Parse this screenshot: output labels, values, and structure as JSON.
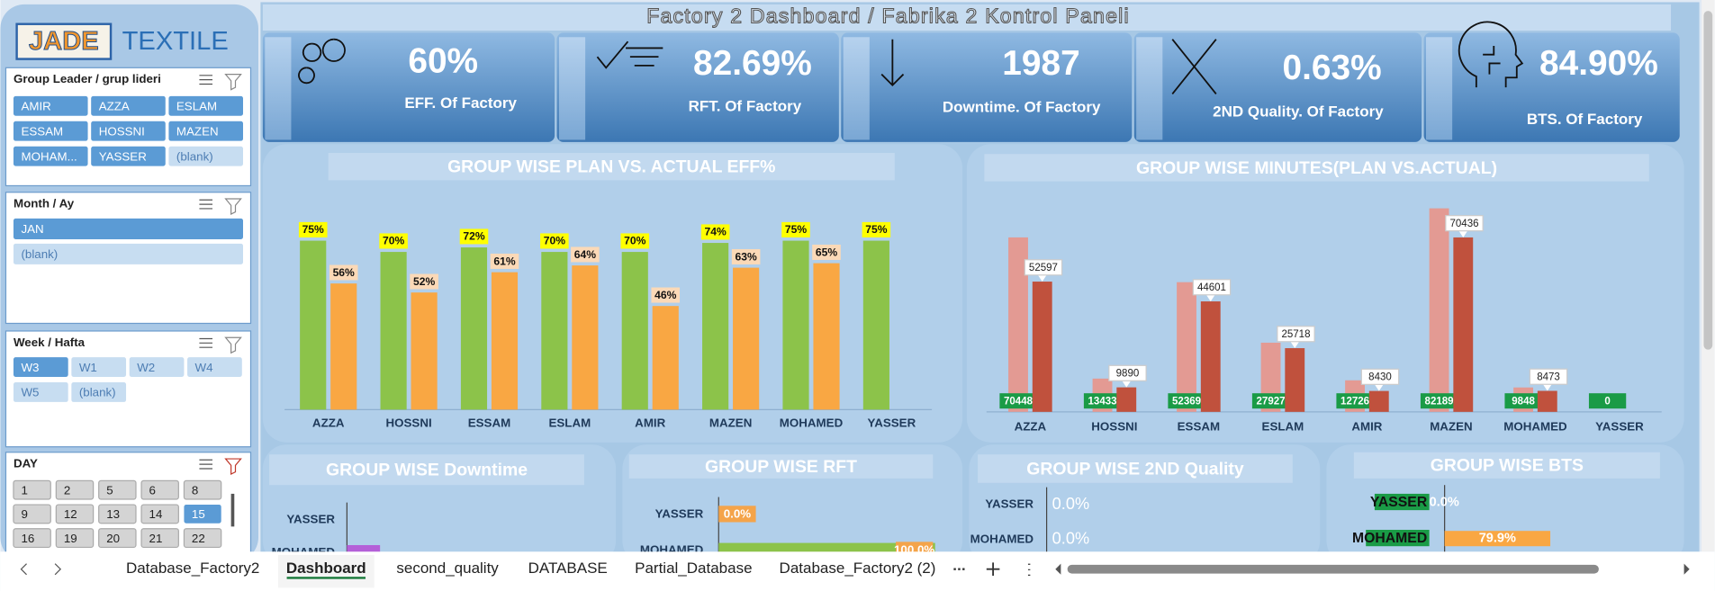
{
  "logo": {
    "brand": "JADE",
    "name": "TEXTILE"
  },
  "title": "Factory 2 Dashboard / Fabrika 2 Kontrol Paneli",
  "slicers": [
    {
      "title": "Group Leader / grup lideri",
      "items": [
        "AMIR",
        "AZZA",
        "ESLAM",
        "ESSAM",
        "HOSSNI",
        "MAZEN",
        "MOHAM...",
        "YASSER",
        "(blank)"
      ],
      "selected": [
        true,
        true,
        true,
        true,
        true,
        true,
        true,
        true,
        false
      ]
    },
    {
      "title": "Month / Ay",
      "items": [
        "JAN",
        "(blank)"
      ],
      "selected": [
        true,
        false
      ]
    },
    {
      "title": "Week / Hafta",
      "items": [
        "W3",
        "W1",
        "W2",
        "W4",
        "W5",
        "(blank)"
      ],
      "selected": [
        true,
        false,
        false,
        false,
        false,
        false
      ]
    },
    {
      "title": "DAY",
      "items": [
        "1",
        "2",
        "5",
        "6",
        "8",
        "9",
        "12",
        "13",
        "14",
        "15",
        "16",
        "19",
        "20",
        "21",
        "22"
      ],
      "selected": [
        false,
        false,
        false,
        false,
        false,
        false,
        false,
        false,
        false,
        true,
        false,
        false,
        false,
        false,
        false
      ]
    }
  ],
  "kpis": [
    {
      "value": "60%",
      "label": "EFF. Of Factory"
    },
    {
      "value": "82.69%",
      "label": "RFT. Of Factory"
    },
    {
      "value": "1987",
      "label": "Downtime. Of Factory"
    },
    {
      "value": "0.63%",
      "label": "2ND Quality. Of Factory"
    },
    {
      "value": "84.90%",
      "label": "BTS. Of Factory"
    }
  ],
  "chart_data": [
    {
      "type": "bar",
      "title": "GROUP WISE PLAN VS. ACTUAL EFF%",
      "categories": [
        "AZZA",
        "HOSSNI",
        "ESSAM",
        "ESLAM",
        "AMIR",
        "MAZEN",
        "MOHAMED",
        "YASSER"
      ],
      "series": [
        {
          "color": "#8cc34a",
          "label_color": "#ffff00",
          "values": [
            75,
            70,
            72,
            70,
            70,
            74,
            75,
            75
          ],
          "value_labels": [
            "75%",
            "70%",
            "72%",
            "70%",
            "70%",
            "74%",
            "75%",
            "75%"
          ]
        },
        {
          "color": "#f9a743",
          "label_color": "#fbd9b7",
          "values": [
            56,
            52,
            61,
            64,
            46,
            63,
            65,
            null
          ],
          "value_labels": [
            "56%",
            "52%",
            "61%",
            "64%",
            "46%",
            "63%",
            "65%",
            null
          ]
        }
      ],
      "ylim": [
        0,
        80
      ]
    },
    {
      "type": "bar",
      "title": "GROUP WISE MINUTES(PLAN VS.ACTUAL)",
      "categories": [
        "AZZA",
        "HOSSNI",
        "ESSAM",
        "ESLAM",
        "AMIR",
        "MAZEN",
        "MOHAMED",
        "YASSER"
      ],
      "series": [
        {
          "color": "#e39a93",
          "label_color": "#1a9b46",
          "values": [
            70448,
            13433,
            52369,
            27927,
            12726,
            82189,
            9848,
            0
          ]
        },
        {
          "color": "#c0513d",
          "label_color": "#ffffff",
          "values": [
            52597,
            9890,
            44601,
            25718,
            8430,
            70436,
            8473,
            null
          ]
        }
      ],
      "ylim": [
        0,
        90000
      ]
    },
    {
      "type": "hbar",
      "title": "GROUP WISE Downtime",
      "categories": [
        "YASSER",
        "MOHAMED"
      ],
      "values": [
        0,
        130
      ],
      "color": "#b460d8",
      "xlim": [
        0,
        1000
      ]
    },
    {
      "type": "hbar",
      "title": "GROUP WISE RFT",
      "categories": [
        "YASSER",
        "MOHAMED"
      ],
      "values": [
        0,
        100
      ],
      "value_labels": [
        "0.0%",
        "100.0%"
      ],
      "color": "#8cc34a",
      "xlim": [
        0,
        100
      ]
    },
    {
      "type": "hbar",
      "title": "GROUP WISE 2ND Quality",
      "categories": [
        "YASSER",
        "MOHAMED"
      ],
      "values": [
        0,
        0
      ],
      "value_labels": [
        "0.0%",
        "0.0%"
      ],
      "color": "#f9a743",
      "xlim": [
        0,
        100
      ]
    },
    {
      "type": "hbar",
      "title": "GROUP WISE BTS",
      "categories": [
        "YASSER",
        "MOHAMED"
      ],
      "values": [
        0,
        79.9
      ],
      "value_labels": [
        "0.0%",
        "79.9%"
      ],
      "color": "#f9a743",
      "xlim": [
        0,
        100
      ]
    }
  ],
  "tabs": [
    "Database_Factory2",
    "Dashboard",
    "second_quality",
    "DATABASE",
    "Partial_Database",
    "Database_Factory2 (2)"
  ],
  "active_tab": 1
}
